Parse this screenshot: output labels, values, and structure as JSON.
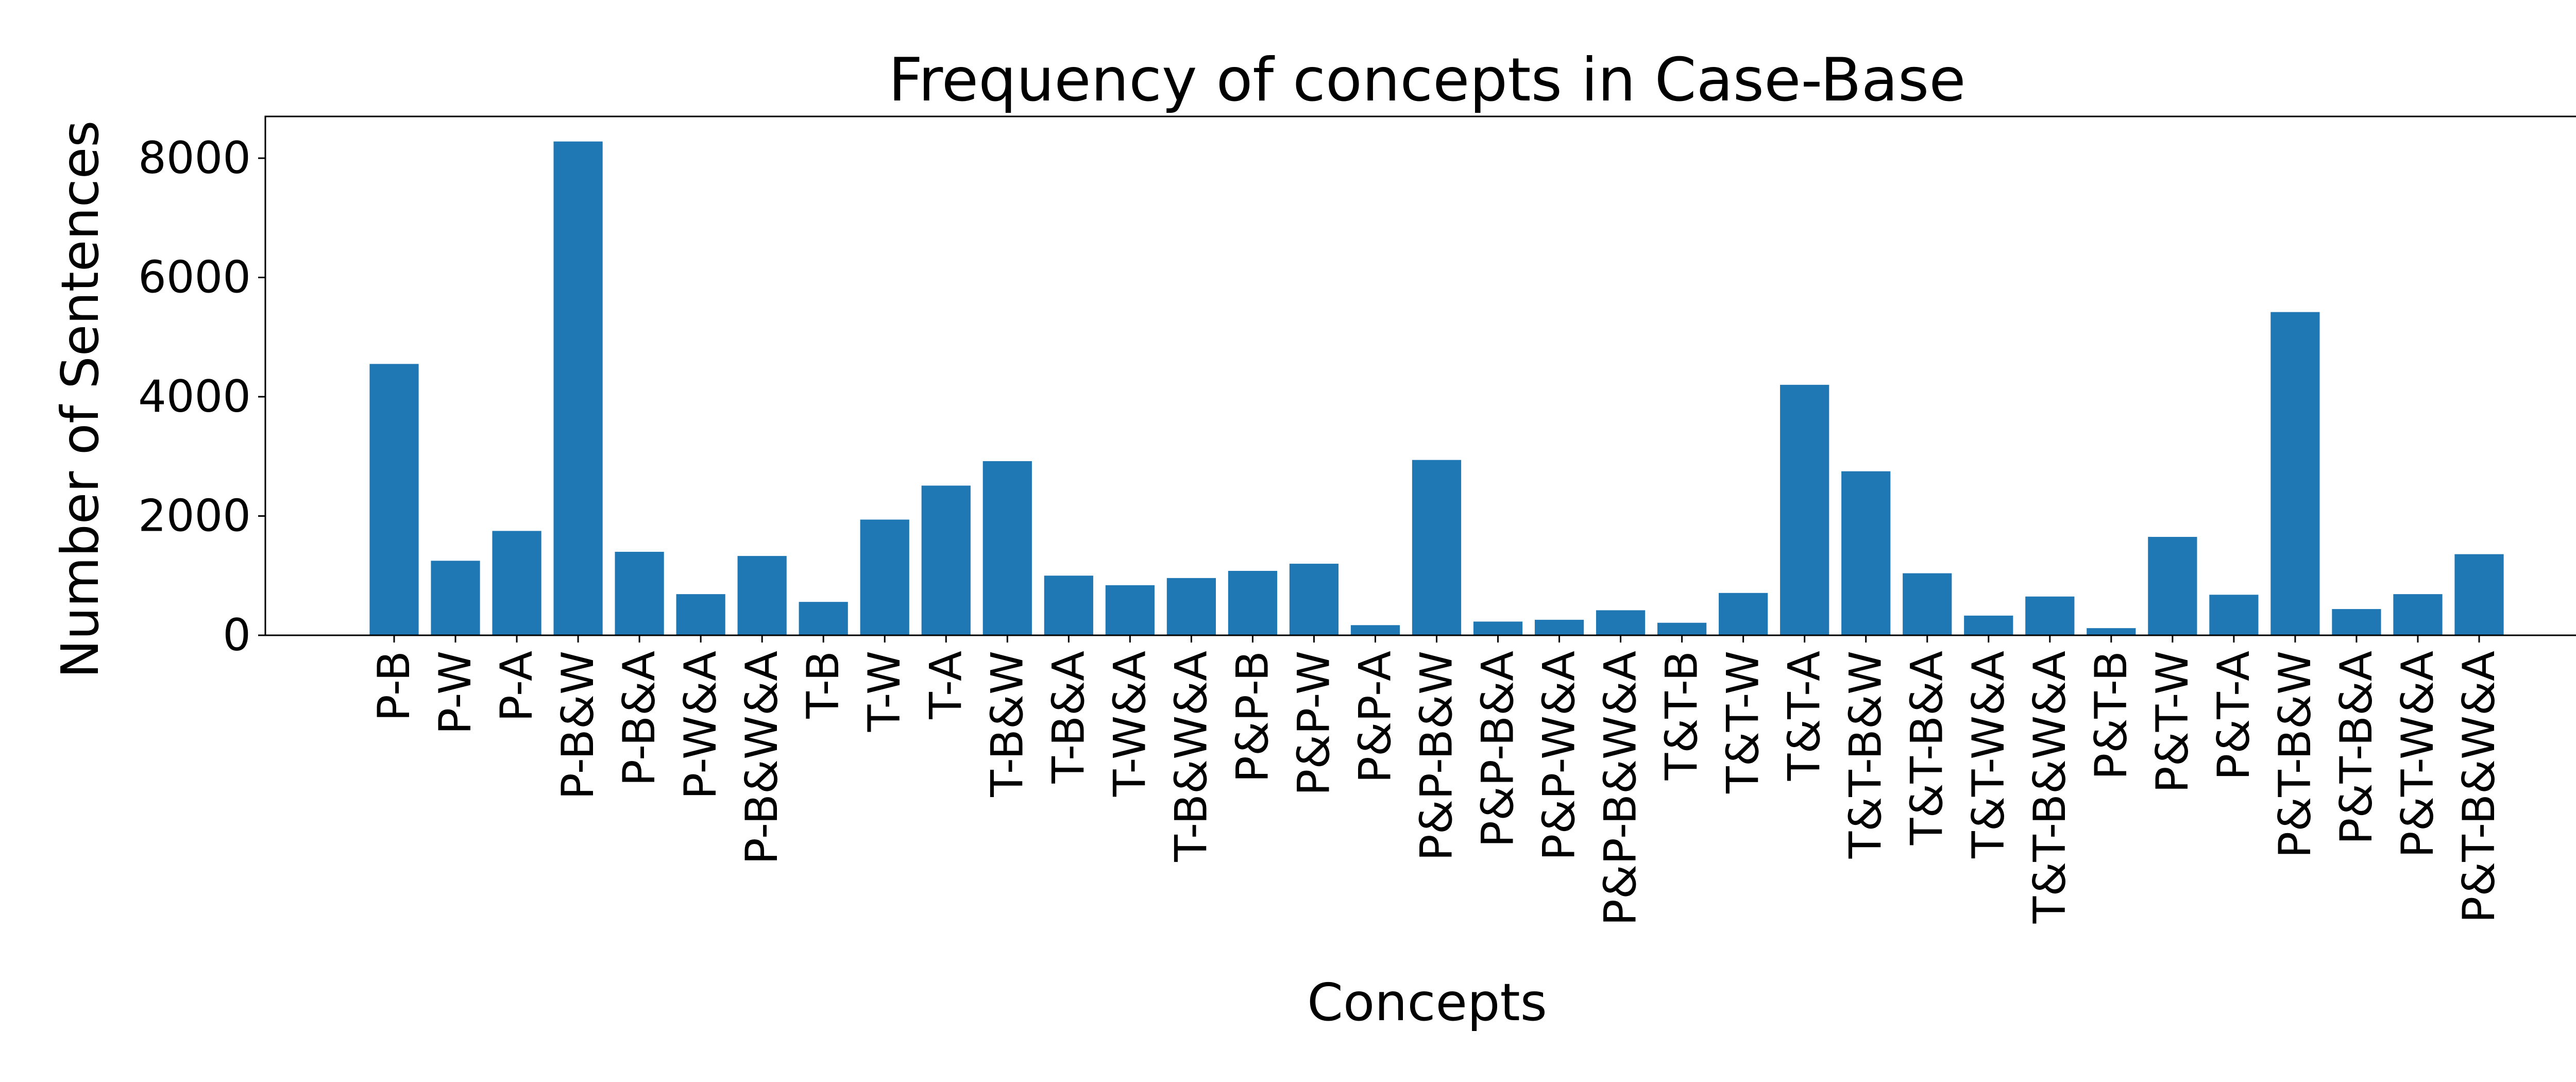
{
  "chart_data": {
    "type": "bar",
    "title": "Frequency of concepts in Case-Base",
    "xlabel": "Concepts",
    "ylabel": "Number of Sentences",
    "ylim": [
      0,
      8700
    ],
    "yticks": [
      0,
      2000,
      4000,
      6000,
      8000
    ],
    "grid": false,
    "bar_color": "#1f77b4",
    "categories": [
      "P-B",
      "P-W",
      "P-A",
      "P-B&W",
      "P-B&A",
      "P-W&A",
      "P-B&W&A",
      "T-B",
      "T-W",
      "T-A",
      "T-B&W",
      "T-B&A",
      "T-W&A",
      "T-B&W&A",
      "P&P-B",
      "P&P-W",
      "P&P-A",
      "P&P-B&W",
      "P&P-B&A",
      "P&P-W&A",
      "P&P-B&W&A",
      "T&T-B",
      "T&T-W",
      "T&T-A",
      "T&T-B&W",
      "T&T-B&A",
      "T&T-W&A",
      "T&T-B&W&A",
      "P&T-B",
      "P&T-W",
      "P&T-A",
      "P&T-B&W",
      "P&T-B&A",
      "P&T-W&A",
      "P&T-B&W&A"
    ],
    "values": [
      4550,
      1250,
      1750,
      8280,
      1400,
      690,
      1330,
      560,
      1940,
      2510,
      2920,
      1000,
      840,
      960,
      1080,
      1200,
      170,
      2940,
      230,
      260,
      420,
      210,
      710,
      4200,
      2750,
      1040,
      330,
      650,
      120,
      1650,
      680,
      5420,
      440,
      690,
      1360
    ]
  }
}
